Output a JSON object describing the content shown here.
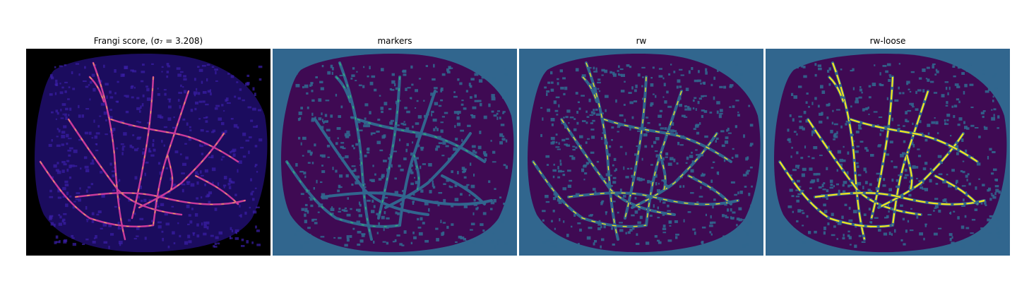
{
  "panels": [
    {
      "id": "frangi",
      "title": "Frangi score, (σ₇ = 3.208)",
      "colormap": "plasma",
      "background": "#000000",
      "tissue": "#1b0c5e",
      "vessel": "#c93a9a",
      "highlight": "#f6d33c"
    },
    {
      "id": "markers",
      "title": "markers",
      "colormap": "viridis",
      "background": "#31668e",
      "tissue": "#3f0a53",
      "vessel": "#31668e",
      "highlight": "#35b779"
    },
    {
      "id": "rw",
      "title": "rw",
      "colormap": "viridis",
      "background": "#31668e",
      "tissue": "#3f0a53",
      "vessel": "#31668e",
      "highlight": "#f7e51a"
    },
    {
      "id": "rw-loose",
      "title": "rw-loose",
      "colormap": "viridis",
      "background": "#31668e",
      "tissue": "#3f0a53",
      "vessel": "#31668e",
      "highlight": "#f7e51a"
    }
  ]
}
